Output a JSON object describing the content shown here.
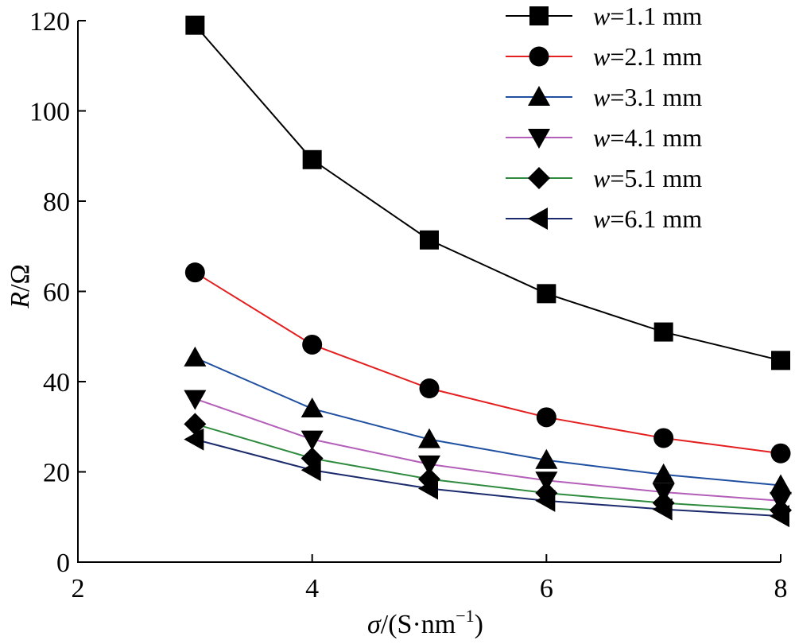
{
  "chart_data": {
    "type": "line",
    "x": [
      3,
      4,
      5,
      6,
      7,
      8
    ],
    "xlim": [
      2,
      8
    ],
    "ylim": [
      0,
      120
    ],
    "xticks": [
      "2",
      "4",
      "6",
      "8"
    ],
    "yticks": [
      "0",
      "20",
      "40",
      "60",
      "80",
      "100",
      "120"
    ],
    "xlabel": {
      "italic": "σ",
      "rest": "/(S·nm",
      "sup": "−1",
      "close": ")"
    },
    "ylabel": {
      "italic": "R",
      "rest": "/Ω"
    },
    "grid": false,
    "legend_position": "top-right",
    "series": [
      {
        "name": "w = 1.1 mm",
        "prefix": "w",
        "label": "=1.1 mm",
        "color": "#000000",
        "marker": "square",
        "values": [
          119,
          89.2,
          71.4,
          59.5,
          51.0,
          44.7
        ]
      },
      {
        "name": "w = 2.1 mm",
        "prefix": "w",
        "label": "=2.1 mm",
        "color": "#e41f1f",
        "marker": "circle",
        "values": [
          64.2,
          48.2,
          38.5,
          32.1,
          27.5,
          24.1
        ]
      },
      {
        "name": "w = 3.1 mm",
        "prefix": "w",
        "label": "=3.1 mm",
        "color": "#1f4fa0",
        "marker": "triangle-up",
        "values": [
          45.3,
          34.0,
          27.2,
          22.6,
          19.4,
          17.0
        ]
      },
      {
        "name": "w = 4.1 mm",
        "prefix": "w",
        "label": "=4.1 mm",
        "color": "#b35eb8",
        "marker": "triangle-down",
        "values": [
          36.2,
          27.2,
          21.7,
          18.1,
          15.5,
          13.6
        ]
      },
      {
        "name": "w = 5.1 mm",
        "prefix": "w",
        "label": "=5.1 mm",
        "color": "#2e8b3e",
        "marker": "diamond",
        "values": [
          30.6,
          23.0,
          18.4,
          15.3,
          13.1,
          11.5
        ]
      },
      {
        "name": "w = 6.1 mm",
        "prefix": "w",
        "label": "=6.1 mm",
        "color": "#1a2a6c",
        "marker": "triangle-left",
        "values": [
          27.2,
          20.4,
          16.3,
          13.6,
          11.7,
          10.2
        ]
      }
    ]
  }
}
